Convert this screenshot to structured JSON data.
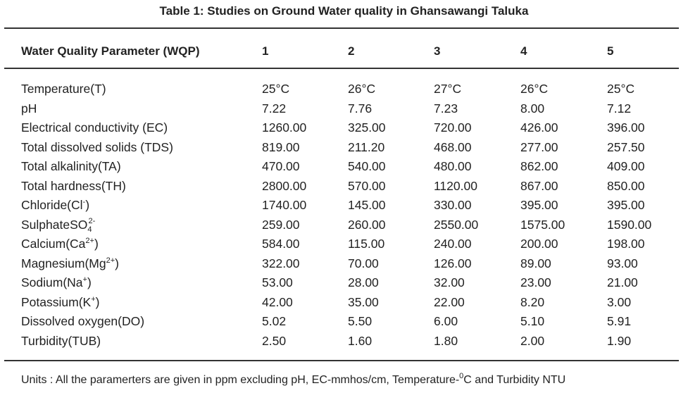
{
  "title": "Table 1: Studies on Ground Water quality in Ghansawangi Taluka",
  "columns": [
    "Water Quality Parameter (WQP)",
    "1",
    "2",
    "3",
    "4",
    "5"
  ],
  "rows": [
    {
      "base": "Temperature(T)",
      "values": [
        "25°C",
        "26°C",
        "27°C",
        "26°C",
        "25°C"
      ]
    },
    {
      "base": "pH",
      "values": [
        "7.22",
        "7.76",
        "7.23",
        "8.00",
        "7.12"
      ]
    },
    {
      "base": "Electrical conductivity (EC)",
      "values": [
        "1260.00",
        "325.00",
        "720.00",
        "426.00",
        "396.00"
      ]
    },
    {
      "base": "Total dissolved solids (TDS)",
      "values": [
        "819.00",
        "211.20",
        "468.00",
        "277.00",
        "257.50"
      ]
    },
    {
      "base": "Total alkalinity(TA)",
      "values": [
        "470.00",
        "540.00",
        "480.00",
        "862.00",
        "409.00"
      ]
    },
    {
      "base": "Total hardness(TH)",
      "values": [
        "2800.00",
        "570.00",
        "1120.00",
        "867.00",
        "850.00"
      ]
    },
    {
      "base": "Chloride(Cl",
      "sup": "-",
      "tail": ")",
      "values": [
        "1740.00",
        "145.00",
        "330.00",
        "395.00",
        "395.00"
      ]
    },
    {
      "base": "SulphateSO",
      "sub": "4",
      "sup": "2-",
      "values": [
        "259.00",
        "260.00",
        "2550.00",
        "1575.00",
        "1590.00"
      ]
    },
    {
      "base": "Calcium(Ca",
      "sup": "2+",
      "tail": ")",
      "values": [
        "584.00",
        "115.00",
        "240.00",
        "200.00",
        "198.00"
      ]
    },
    {
      "base": "Magnesium(Mg",
      "sup": "2+",
      "tail": ")",
      "values": [
        "322.00",
        "70.00",
        "126.00",
        "89.00",
        "93.00"
      ]
    },
    {
      "base": "Sodium(Na",
      "sup": "+",
      "tail": ")",
      "values": [
        "53.00",
        "28.00",
        "32.00",
        "23.00",
        "21.00"
      ]
    },
    {
      "base": "Potassium(K",
      "sup": "+",
      "tail": ")",
      "values": [
        "42.00",
        "35.00",
        "22.00",
        "8.20",
        "3.00"
      ]
    },
    {
      "base": "Dissolved oxygen(DO)",
      "values": [
        "5.02",
        "5.50",
        "6.00",
        "5.10",
        "5.91"
      ]
    },
    {
      "base": "Turbidity(TUB)",
      "values": [
        "2.50",
        "1.60",
        "1.80",
        "2.00",
        "1.90"
      ]
    }
  ],
  "footnote": {
    "before": "Units : All the paramerters are given in ppm excluding pH, EC-mmhos/cm, Temperature-",
    "sup": "0",
    "after": "C and Turbidity NTU"
  }
}
